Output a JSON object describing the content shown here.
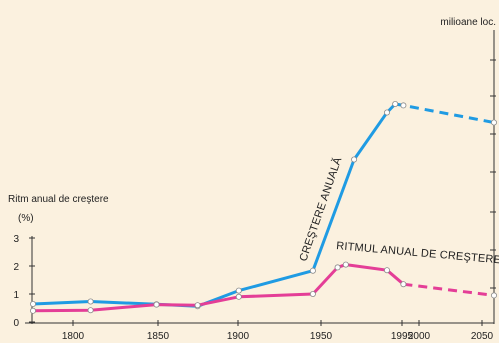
{
  "chart_data": {
    "type": "line",
    "background": "#fbf1df",
    "x_ticks": [
      1800,
      1850,
      1900,
      1950,
      1995,
      2000,
      2050
    ],
    "xlim": [
      1775,
      2055
    ],
    "left_axis": {
      "label_line1": "Ritm anual de creştere",
      "label_line2": "(%)",
      "ticks": [
        0,
        1,
        2,
        3
      ],
      "ylim": [
        0,
        3
      ]
    },
    "right_axis": {
      "label": "milioane loc.",
      "scale": "relative"
    },
    "series": [
      {
        "name": "CREŞTERE ANUALĂ",
        "color": "#1f9be3",
        "axis": "right",
        "points": [
          {
            "x": 1775,
            "y": 0.63
          },
          {
            "x": 1810,
            "y": 0.72
          },
          {
            "x": 1850,
            "y": 0.62
          },
          {
            "x": 1875,
            "y": 0.55
          },
          {
            "x": 1900,
            "y": 1.1
          },
          {
            "x": 1945,
            "y": 1.8
          },
          {
            "x": 1970,
            "y": 5.7
          },
          {
            "x": 1990,
            "y": 7.35
          },
          {
            "x": 1995,
            "y": 7.65
          }
        ],
        "projection": [
          {
            "x": 1995,
            "y": 7.65
          },
          {
            "x": 2000,
            "y": 7.6
          },
          {
            "x": 2055,
            "y": 7.0
          }
        ]
      },
      {
        "name": "RITMUL ANUAL DE CREŞTERE",
        "color": "#e43e97",
        "axis": "left",
        "points": [
          {
            "x": 1775,
            "y": 0.4
          },
          {
            "x": 1810,
            "y": 0.42
          },
          {
            "x": 1850,
            "y": 0.62
          },
          {
            "x": 1875,
            "y": 0.6
          },
          {
            "x": 1900,
            "y": 0.9
          },
          {
            "x": 1945,
            "y": 1.0
          },
          {
            "x": 1960,
            "y": 1.95
          },
          {
            "x": 1965,
            "y": 2.05
          },
          {
            "x": 1990,
            "y": 1.85
          },
          {
            "x": 2000,
            "y": 1.35
          }
        ],
        "projection": [
          {
            "x": 2000,
            "y": 1.35
          },
          {
            "x": 2055,
            "y": 0.95
          }
        ]
      }
    ]
  }
}
